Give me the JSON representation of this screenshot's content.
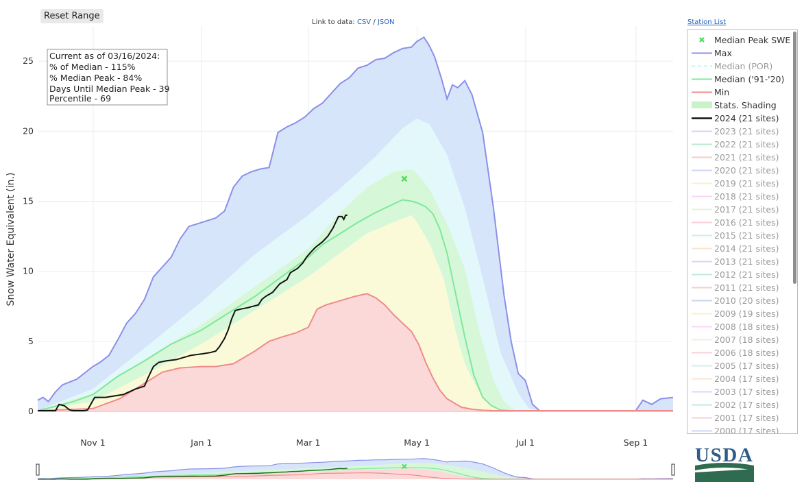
{
  "toolbar": {
    "reset_label": "Reset Range"
  },
  "links": {
    "prefix": "Link to data:",
    "csv": "CSV",
    "sep": "/",
    "json": "JSON",
    "station_list": "Station List"
  },
  "info_box": {
    "lines": [
      "Current as of 03/16/2024:",
      "% of Median - 115%",
      "% Median Peak - 84%",
      "Days Until Median Peak - 39",
      "Percentile - 69"
    ]
  },
  "logo": {
    "text": "USDA"
  },
  "colors": {
    "max": "#8b8fe8",
    "median91": "#7ee89a",
    "min": "#f08a8a",
    "current": "#111111",
    "band_max": "#d7e5fa",
    "band_p90": "#e3f8fb",
    "band_p70": "#d7f7d9",
    "band_p30": "#fbfad8",
    "band_min": "#fbd9d9",
    "marker": "#4fdc5f",
    "grid": "#ececec"
  },
  "chart_data": {
    "type": "area",
    "title": "",
    "xlabel": "",
    "ylabel": "Snow Water Equivalent (in.)",
    "ylim": [
      0,
      27.5
    ],
    "xlim_days": [
      0,
      357
    ],
    "x_unit": "days since Oct 1",
    "xticks": [
      {
        "day": 31,
        "label": "Nov  1"
      },
      {
        "day": 92,
        "label": "Jan  1"
      },
      {
        "day": 152,
        "label": "Mar  1"
      },
      {
        "day": 213,
        "label": "May  1"
      },
      {
        "day": 274,
        "label": "Jul  1"
      },
      {
        "day": 336,
        "label": "Sep  1"
      }
    ],
    "yticks": [
      0,
      5,
      10,
      15,
      20,
      25
    ],
    "series": [
      {
        "name": "Max",
        "x": [
          0,
          3,
          6,
          10,
          14,
          18,
          22,
          26,
          31,
          35,
          40,
          45,
          50,
          55,
          60,
          65,
          70,
          75,
          80,
          85,
          90,
          95,
          100,
          105,
          110,
          115,
          120,
          125,
          130,
          135,
          140,
          145,
          150,
          155,
          160,
          165,
          170,
          175,
          180,
          185,
          190,
          195,
          200,
          205,
          210,
          213,
          217,
          220,
          223,
          227,
          230,
          233,
          236,
          240,
          244,
          250,
          256,
          262,
          266,
          270,
          274,
          278,
          282,
          290,
          300,
          310,
          320,
          330,
          336,
          340,
          345,
          350,
          357
        ],
        "y": [
          0.8,
          1.0,
          0.7,
          1.4,
          1.9,
          2.1,
          2.3,
          2.7,
          3.2,
          3.5,
          4.0,
          5.1,
          6.3,
          7.0,
          8.0,
          9.6,
          10.3,
          11.0,
          12.3,
          13.2,
          13.4,
          13.6,
          13.8,
          14.3,
          16.0,
          16.8,
          17.1,
          17.3,
          17.4,
          19.9,
          20.3,
          20.6,
          21.0,
          21.6,
          22.0,
          22.7,
          23.4,
          23.8,
          24.5,
          24.7,
          25.1,
          25.2,
          25.6,
          25.9,
          26.0,
          26.4,
          26.7,
          26.1,
          25.3,
          23.7,
          22.3,
          23.3,
          23.1,
          23.6,
          22.6,
          19.9,
          14.6,
          8.3,
          5.0,
          2.7,
          2.2,
          0.5,
          0.05,
          0.05,
          0.05,
          0.05,
          0.05,
          0.05,
          0.05,
          0.8,
          0.5,
          0.9,
          1.0
        ]
      },
      {
        "name": "Stats.Shading P90",
        "x": [
          0,
          31,
          60,
          92,
          122,
          152,
          170,
          190,
          205,
          213,
          220,
          230,
          240,
          250,
          260,
          270,
          276,
          282,
          300,
          357
        ],
        "y": [
          0.05,
          1.6,
          4.5,
          7.8,
          11.2,
          14.0,
          15.9,
          18.2,
          20.2,
          20.9,
          20.5,
          18.3,
          14.5,
          9.5,
          4.2,
          1.3,
          0.2,
          0.05,
          0.05,
          0.05
        ]
      },
      {
        "name": "Stats.Shading P70",
        "x": [
          0,
          31,
          60,
          92,
          122,
          152,
          170,
          185,
          200,
          210,
          213,
          220,
          230,
          240,
          248,
          256,
          262,
          268,
          280,
          357
        ],
        "y": [
          0.05,
          1.3,
          3.7,
          6.2,
          8.9,
          11.6,
          14.2,
          16.0,
          17.1,
          17.3,
          17.0,
          15.9,
          13.4,
          10.2,
          5.8,
          2.3,
          0.7,
          0.1,
          0.05,
          0.05
        ]
      },
      {
        "name": "Median ('91-'20)",
        "x": [
          0,
          8,
          20,
          31,
          45,
          60,
          75,
          92,
          107,
          122,
          137,
          152,
          160,
          170,
          180,
          190,
          200,
          205,
          210,
          213,
          218,
          222,
          226,
          230,
          235,
          240,
          245,
          250,
          255,
          260,
          265,
          270,
          280,
          357
        ],
        "y": [
          0.05,
          0.3,
          0.7,
          1.2,
          2.5,
          3.6,
          4.8,
          5.8,
          7.0,
          8.2,
          9.6,
          11.0,
          11.9,
          12.7,
          13.5,
          14.2,
          14.8,
          15.1,
          15.0,
          14.9,
          14.6,
          14.1,
          13.0,
          11.3,
          8.3,
          5.3,
          2.6,
          1.0,
          0.4,
          0.1,
          0.05,
          0.05,
          0.05,
          0.05
        ]
      },
      {
        "name": "Stats.Shading P30",
        "x": [
          0,
          31,
          60,
          92,
          122,
          152,
          170,
          185,
          200,
          210,
          213,
          220,
          228,
          235,
          240,
          245,
          250,
          258,
          265,
          357
        ],
        "y": [
          0.05,
          0.7,
          2.6,
          4.8,
          7.2,
          9.6,
          11.3,
          12.7,
          13.5,
          14.0,
          13.5,
          12.0,
          9.5,
          5.6,
          3.4,
          2.1,
          0.9,
          0.2,
          0.05,
          0.05
        ]
      },
      {
        "name": "Min",
        "x": [
          0,
          31,
          46,
          60,
          70,
          80,
          92,
          100,
          110,
          122,
          130,
          137,
          145,
          152,
          157,
          162,
          170,
          178,
          185,
          190,
          195,
          200,
          205,
          210,
          214,
          218,
          222,
          226,
          230,
          234,
          238,
          244,
          250,
          256,
          262,
          357
        ],
        "y": [
          0.05,
          0.2,
          0.9,
          2.0,
          2.8,
          3.1,
          3.2,
          3.2,
          3.4,
          4.3,
          5.0,
          5.3,
          5.6,
          6.0,
          7.3,
          7.6,
          7.9,
          8.2,
          8.4,
          8.1,
          7.6,
          6.9,
          6.3,
          5.7,
          4.8,
          3.5,
          2.4,
          1.5,
          0.9,
          0.6,
          0.3,
          0.15,
          0.08,
          0.05,
          0.05,
          0.05
        ]
      },
      {
        "name": "2024 (21 sites)",
        "x": [
          0,
          10,
          12,
          15,
          18,
          20,
          22,
          26,
          28,
          32,
          38,
          43,
          48,
          55,
          60,
          62,
          65,
          68,
          72,
          78,
          86,
          92,
          97,
          100,
          102,
          105,
          107,
          109,
          111,
          114,
          118,
          121,
          124,
          126,
          128,
          132,
          136,
          140,
          142,
          146,
          149,
          151,
          153,
          156,
          160,
          163,
          166,
          169,
          171,
          172,
          173,
          174
        ],
        "y": [
          0.05,
          0.05,
          0.5,
          0.4,
          0.1,
          0.05,
          0.05,
          0.05,
          0.1,
          1.0,
          1.0,
          1.1,
          1.2,
          1.6,
          1.8,
          2.4,
          3.2,
          3.5,
          3.6,
          3.7,
          4.0,
          4.1,
          4.2,
          4.3,
          4.6,
          5.2,
          5.8,
          6.6,
          7.2,
          7.3,
          7.4,
          7.5,
          7.6,
          8.0,
          8.2,
          8.5,
          9.1,
          9.4,
          9.9,
          10.2,
          10.6,
          11.0,
          11.3,
          11.7,
          12.1,
          12.5,
          13.1,
          13.9,
          13.9,
          13.7,
          14.0,
          14.0
        ]
      }
    ],
    "markers": [
      {
        "name": "Median Peak SWE",
        "x": 206,
        "y": 16.6,
        "symbol": "x"
      }
    ],
    "legend": {
      "placement": "right",
      "entries": [
        {
          "label": "Median Peak SWE",
          "kind": "marker",
          "color": "#4fdc5f",
          "active": true
        },
        {
          "label": "Max",
          "kind": "line",
          "color": "#8b8fe8",
          "active": true
        },
        {
          "label": "Median (POR)",
          "kind": "dash",
          "color": "#c5f3ef",
          "active": false
        },
        {
          "label": "Median ('91-'20)",
          "kind": "line",
          "color": "#7ee89a",
          "active": true
        },
        {
          "label": "Min",
          "kind": "line",
          "color": "#f08a8a",
          "active": true
        },
        {
          "label": "Stats. Shading",
          "kind": "band",
          "color": "#c8f3c8",
          "active": true
        },
        {
          "label": "2024 (21 sites)",
          "kind": "line-thick",
          "color": "#111111",
          "active": true
        },
        {
          "label": "2023 (21 sites)",
          "kind": "line",
          "color": "#c7a4ea",
          "active": false
        },
        {
          "label": "2022 (21 sites)",
          "kind": "line",
          "color": "#7fd9a4",
          "active": false
        },
        {
          "label": "2021 (21 sites)",
          "kind": "line",
          "color": "#f4a2a2",
          "active": false
        },
        {
          "label": "2020 (21 sites)",
          "kind": "line",
          "color": "#a9b2f3",
          "active": false
        },
        {
          "label": "2019 (21 sites)",
          "kind": "line",
          "color": "#f8e2a3",
          "active": false
        },
        {
          "label": "2018 (21 sites)",
          "kind": "line",
          "color": "#f6b3f0",
          "active": false
        },
        {
          "label": "2017 (21 sites)",
          "kind": "line",
          "color": "#cfeab5",
          "active": false
        },
        {
          "label": "2016 (21 sites)",
          "kind": "line",
          "color": "#f4a9bd",
          "active": false
        },
        {
          "label": "2015 (21 sites)",
          "kind": "line",
          "color": "#9fe7e2",
          "active": false
        },
        {
          "label": "2014 (21 sites)",
          "kind": "line",
          "color": "#f8cfa9",
          "active": false
        },
        {
          "label": "2013 (21 sites)",
          "kind": "line",
          "color": "#c9a9ef",
          "active": false
        },
        {
          "label": "2012 (21 sites)",
          "kind": "line",
          "color": "#8ed8b8",
          "active": false
        },
        {
          "label": "2011 (21 sites)",
          "kind": "line",
          "color": "#f1a5a5",
          "active": false
        },
        {
          "label": "2010 (20 sites)",
          "kind": "line",
          "color": "#a2ace9",
          "active": false
        },
        {
          "label": "2009 (19 sites)",
          "kind": "line",
          "color": "#f6e1a0",
          "active": false
        },
        {
          "label": "2008 (18 sites)",
          "kind": "line",
          "color": "#f7b4ef",
          "active": false
        },
        {
          "label": "2007 (18 sites)",
          "kind": "line",
          "color": "#d4ebbd",
          "active": false
        },
        {
          "label": "2006 (18 sites)",
          "kind": "line",
          "color": "#f4aab8",
          "active": false
        },
        {
          "label": "2005 (17 sites)",
          "kind": "line",
          "color": "#a6e7e3",
          "active": false
        },
        {
          "label": "2004 (17 sites)",
          "kind": "line",
          "color": "#f8d0ab",
          "active": false
        },
        {
          "label": "2003 (17 sites)",
          "kind": "line",
          "color": "#cdaff0",
          "active": false
        },
        {
          "label": "2002 (17 sites)",
          "kind": "line",
          "color": "#94d9bb",
          "active": false
        },
        {
          "label": "2001 (17 sites)",
          "kind": "line",
          "color": "#f2aaaa",
          "active": false
        },
        {
          "label": "2000 (17 sites)",
          "kind": "line",
          "color": "#a7b0ee",
          "active": false
        }
      ]
    }
  }
}
